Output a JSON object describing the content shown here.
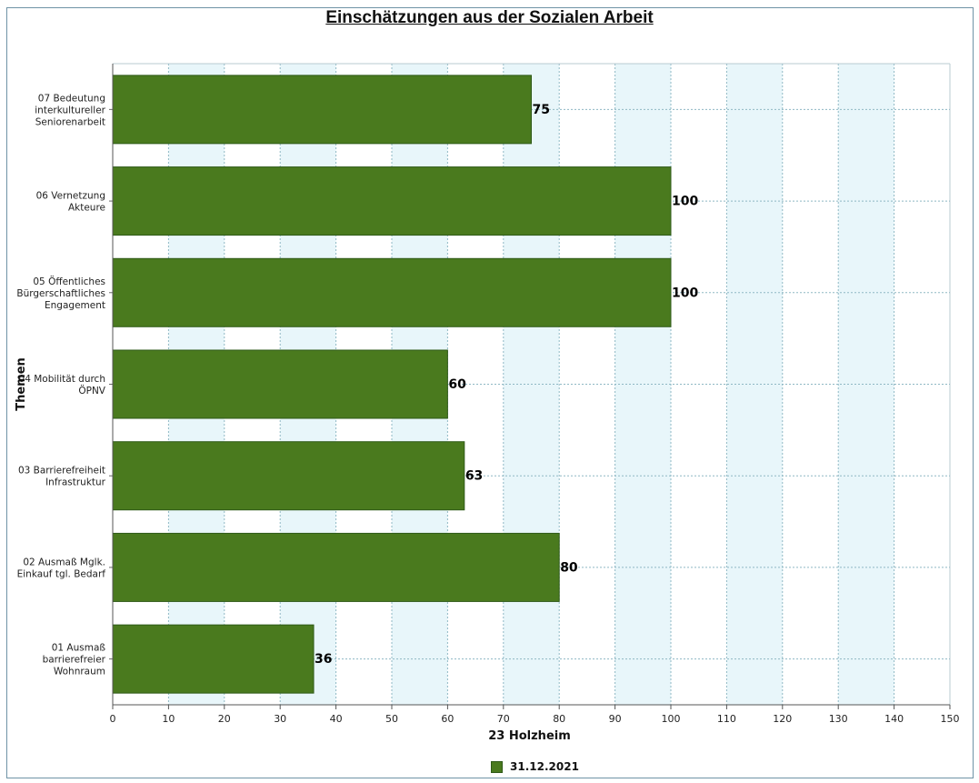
{
  "chart_data": {
    "type": "bar",
    "orientation": "horizontal",
    "title": "Einschätzungen aus der Sozialen Arbeit",
    "xlabel": "23 Holzheim",
    "ylabel": "Themen",
    "xlim": [
      0,
      150
    ],
    "xticks": [
      0,
      10,
      20,
      30,
      40,
      50,
      60,
      70,
      80,
      90,
      100,
      110,
      120,
      130,
      140,
      150
    ],
    "grid": true,
    "legend_position": "bottom",
    "categories": [
      [
        "07 Bedeutung",
        "interkultureller",
        "Seniorenarbeit"
      ],
      [
        "06 Vernetzung",
        "Akteure"
      ],
      [
        "05 Öffentliches",
        "Bürgerschaftliches",
        "Engagement"
      ],
      [
        "04 Mobilität durch",
        "ÖPNV"
      ],
      [
        "03 Barrierefreiheit",
        "Infrastruktur"
      ],
      [
        "02 Ausmaß Mglk.",
        "Einkauf tgl. Bedarf"
      ],
      [
        "01 Ausmaß",
        "barrierefreier",
        "Wohnraum"
      ]
    ],
    "series": [
      {
        "name": "31.12.2021",
        "color": "#4a7a1e",
        "values": [
          75,
          100,
          100,
          60,
          63,
          80,
          36
        ]
      }
    ],
    "band_color": "#e8f6fa"
  }
}
